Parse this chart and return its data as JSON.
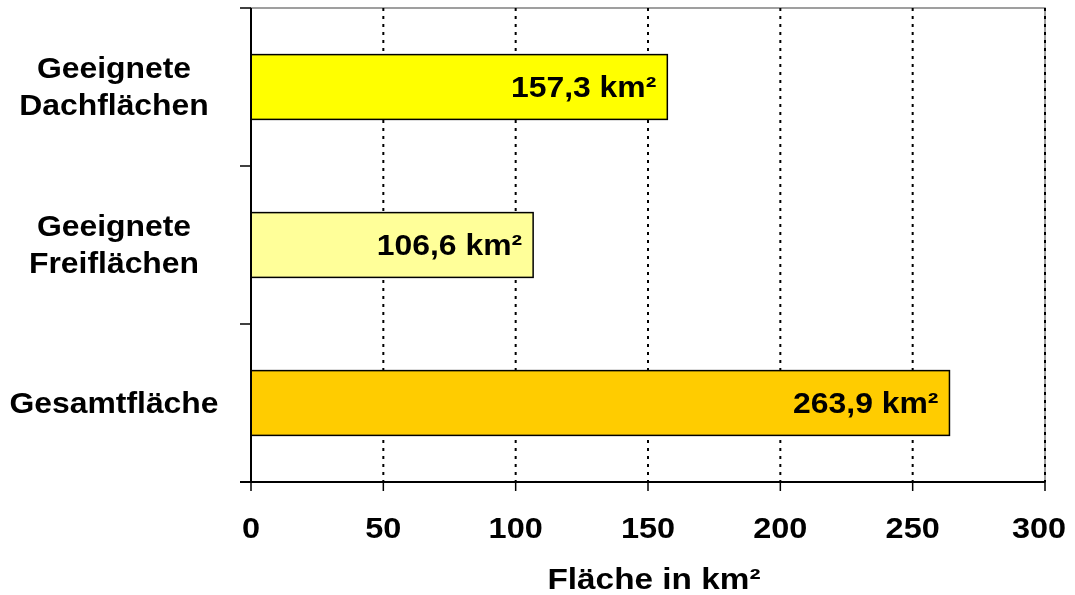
{
  "chart_data": {
    "type": "bar",
    "orientation": "horizontal",
    "categories": [
      "Geeignete Dachflächen",
      "Geeignete Freiflächen",
      "Gesamtfläche"
    ],
    "values": [
      157.3,
      106.6,
      263.9
    ],
    "colors": [
      "#ffff00",
      "#ffff99",
      "#ffcc00"
    ],
    "value_labels": [
      "157,3 km²",
      "106,6 km²",
      "263,9 km²"
    ],
    "xlabel": "Fläche in km²",
    "xlim": [
      0,
      300
    ],
    "xticks": [
      0,
      50,
      100,
      150,
      200,
      250,
      300
    ],
    "grid": "x"
  }
}
